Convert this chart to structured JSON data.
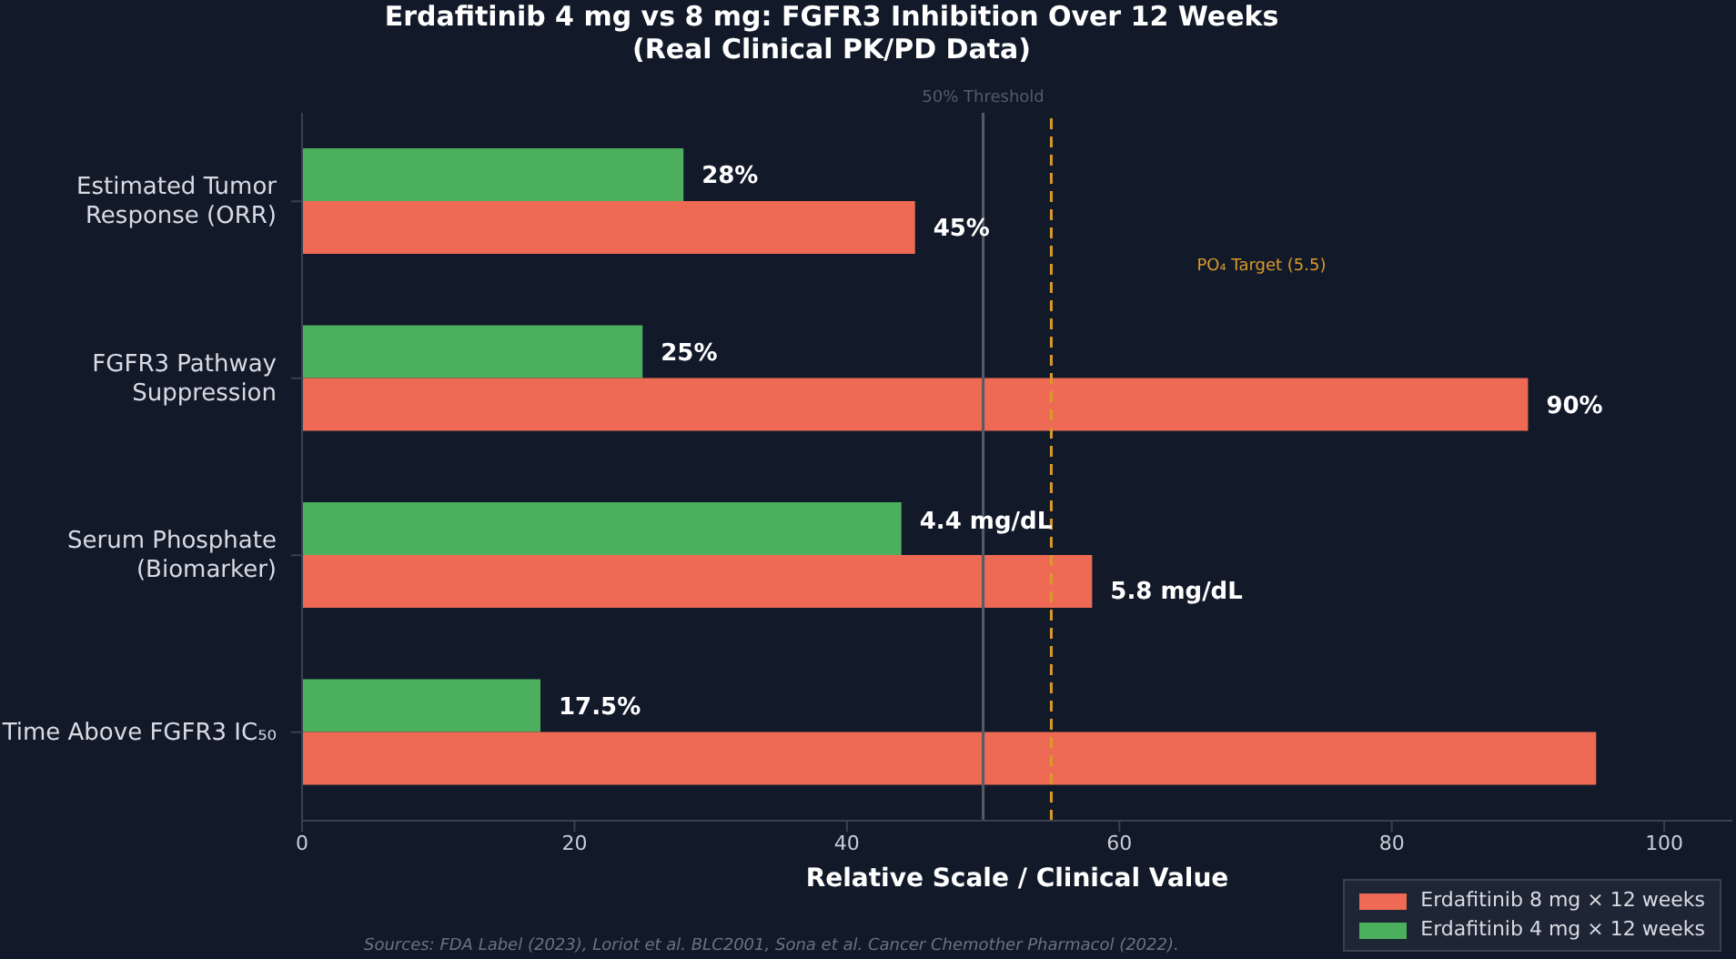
{
  "chart_data": {
    "type": "bar",
    "orientation": "horizontal",
    "title": "Erdafitinib 4 mg vs 8 mg: FGFR3 Inhibition Over 12 Weeks",
    "subtitle": "(Real Clinical PK/PD Data)",
    "xlabel": "Relative Scale / Clinical Value",
    "categories": [
      "Estimated Tumor\nResponse (ORR)",
      "FGFR3 Pathway\nSuppression",
      "Serum Phosphate\n(Biomarker)",
      "Time Above FGFR3 IC₅₀"
    ],
    "series": [
      {
        "name": "Erdafitinib 4 mg × 12 weeks",
        "color": "#4caf5d",
        "values": [
          28,
          25,
          44,
          17.5
        ],
        "value_labels": [
          "28%",
          "25%",
          null,
          "17.5%"
        ]
      },
      {
        "name": "Erdafitinib 8 mg × 12 weeks",
        "color": "#ee6a55",
        "values": [
          45,
          90,
          58,
          95
        ],
        "value_labels": [
          "45%",
          "90%",
          null,
          null
        ]
      }
    ],
    "xlim": [
      0,
      105
    ],
    "xticks": [
      0,
      20,
      40,
      60,
      80,
      100
    ],
    "legend": "bottom right",
    "ref_lines": [
      {
        "axis": "x",
        "value": 50,
        "label": "50% Threshold",
        "color": "#555a66",
        "line_style": "solid"
      },
      {
        "axis": "x",
        "value": 55,
        "label": "PO₄ Target (5.5)",
        "color": "#d99a2b",
        "line_style": "dashed"
      }
    ],
    "annotations": [
      {
        "text": "4.4 mg/dL",
        "x": 44,
        "y": "Serum Phosphate\n(Biomarker)"
      },
      {
        "text": "5.8 mg/dL",
        "x": 58,
        "y": "Serum Phosphate\n(Biomarker)"
      },
      "Sources: FDA Label (2023), Loriot et al. BLC2001, Sona et al. Cancer Chemother Pharmacol (2022)."
    ]
  }
}
